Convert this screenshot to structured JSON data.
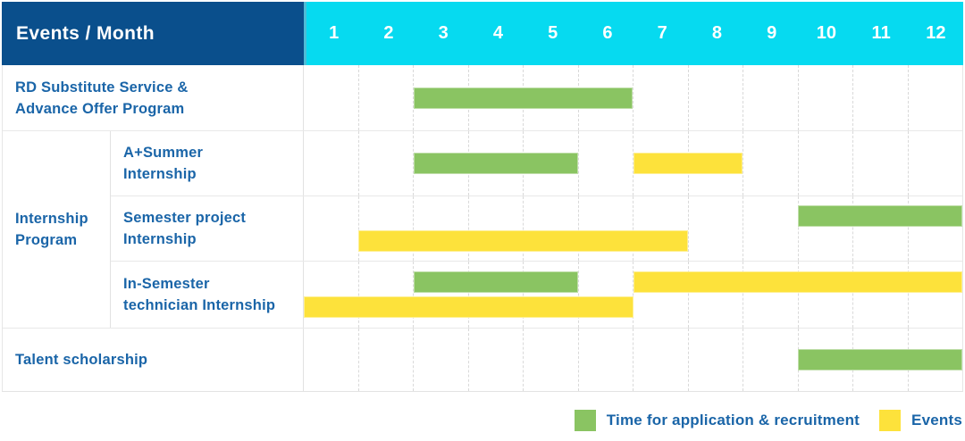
{
  "header": {
    "title": "Events / Month",
    "months": [
      "1",
      "2",
      "3",
      "4",
      "5",
      "6",
      "7",
      "8",
      "9",
      "10",
      "11",
      "12"
    ]
  },
  "group_label": {
    "lines": [
      "Internship",
      "Program"
    ],
    "text": "Internship Program"
  },
  "legend": {
    "items": [
      {
        "kind": "green",
        "label": "Time for application & recruitment"
      },
      {
        "kind": "yellow",
        "label": "Events"
      }
    ]
  },
  "colors": {
    "header_blue": "#0a4f8c",
    "month_cyan": "#06daf0",
    "bar_green": "#8ac462",
    "bar_yellow": "#fde23b",
    "label_blue": "#1a65a8"
  },
  "chart_data": {
    "type": "gantt",
    "x_unit": "month",
    "x_range": [
      1,
      12
    ],
    "x_ticks": [
      "1",
      "2",
      "3",
      "4",
      "5",
      "6",
      "7",
      "8",
      "9",
      "10",
      "11",
      "12"
    ],
    "legend": {
      "green": "Time for application & recruitment",
      "yellow": "Events"
    },
    "rows": [
      {
        "label": "RD Substitute Service & Advance Offer Program",
        "label_lines": [
          "RD Substitute Service &",
          "Advance Offer Program"
        ],
        "group": null,
        "bars": [
          {
            "kind": "green",
            "start": 3,
            "end": 6,
            "lane": "single"
          }
        ]
      },
      {
        "label": "A+Summer Internship",
        "label_lines": [
          "A+Summer",
          "Internship"
        ],
        "group": "Internship Program",
        "bars": [
          {
            "kind": "green",
            "start": 3,
            "end": 5,
            "lane": "single"
          },
          {
            "kind": "yellow",
            "start": 7,
            "end": 8,
            "lane": "single"
          }
        ]
      },
      {
        "label": "Semester project Internship",
        "label_lines": [
          "Semester project",
          "Internship"
        ],
        "group": "Internship Program",
        "bars": [
          {
            "kind": "green",
            "start": 10,
            "end": 12,
            "lane": "top"
          },
          {
            "kind": "yellow",
            "start": 2,
            "end": 7,
            "lane": "bottom"
          }
        ]
      },
      {
        "label": "In-Semester technician Internship",
        "label_lines": [
          "In-Semester",
          "technician Internship"
        ],
        "group": "Internship Program",
        "bars": [
          {
            "kind": "green",
            "start": 3,
            "end": 5,
            "lane": "top"
          },
          {
            "kind": "yellow",
            "start": 7,
            "end": 12,
            "lane": "top"
          },
          {
            "kind": "yellow",
            "start": 1,
            "end": 6,
            "lane": "bottom"
          }
        ]
      },
      {
        "label": "Talent scholarship",
        "label_lines": [
          "Talent scholarship"
        ],
        "group": null,
        "bars": [
          {
            "kind": "green",
            "start": 10,
            "end": 12,
            "lane": "single"
          }
        ]
      }
    ]
  }
}
